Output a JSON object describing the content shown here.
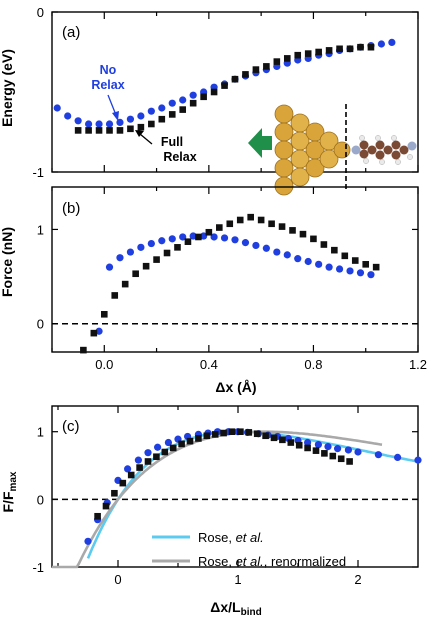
{
  "colors": {
    "blue": "#1f3fe0",
    "black": "#111111",
    "rose": "#5ccbf0",
    "renorm": "#a9a9a9",
    "gold": "#d9a53b",
    "arrow": "#1f8f4a"
  },
  "chart_data": [
    {
      "type": "scatter",
      "panel_label": "(a)",
      "ylabel": "Energy (eV)",
      "xlim": [
        -0.2,
        1.2
      ],
      "ylim": [
        -1,
        0
      ],
      "yticks": [
        "0",
        "-1"
      ],
      "annotations": {
        "no_relax": [
          "No",
          "Relax"
        ],
        "full_relax": [
          "Full",
          "Relax"
        ]
      },
      "inset_icon": "gold-tip-molecule-illustration",
      "series": [
        {
          "name": "No Relax",
          "color": "blue",
          "x": [
            -0.18,
            -0.14,
            -0.1,
            -0.06,
            -0.02,
            0.02,
            0.06,
            0.1,
            0.14,
            0.18,
            0.22,
            0.26,
            0.3,
            0.34,
            0.38,
            0.42,
            0.46,
            0.5,
            0.54,
            0.58,
            0.62,
            0.66,
            0.7,
            0.74,
            0.78,
            0.82,
            0.86,
            0.9,
            0.94,
            0.98,
            1.02,
            1.06,
            1.1
          ],
          "y": [
            -0.6,
            -0.65,
            -0.68,
            -0.7,
            -0.7,
            -0.7,
            -0.69,
            -0.67,
            -0.65,
            -0.62,
            -0.6,
            -0.57,
            -0.55,
            -0.52,
            -0.5,
            -0.47,
            -0.45,
            -0.42,
            -0.4,
            -0.38,
            -0.36,
            -0.34,
            -0.32,
            -0.3,
            -0.29,
            -0.27,
            -0.26,
            -0.24,
            -0.23,
            -0.22,
            -0.21,
            -0.2,
            -0.19
          ]
        },
        {
          "name": "Full Relax",
          "color": "black",
          "x": [
            -0.1,
            -0.06,
            -0.02,
            0.02,
            0.06,
            0.1,
            0.14,
            0.18,
            0.22,
            0.26,
            0.3,
            0.34,
            0.38,
            0.42,
            0.46,
            0.5,
            0.54,
            0.58,
            0.62,
            0.66,
            0.7,
            0.74,
            0.78,
            0.82,
            0.86,
            0.9,
            0.94,
            0.98,
            1.02
          ],
          "y": [
            -0.74,
            -0.74,
            -0.74,
            -0.74,
            -0.74,
            -0.73,
            -0.72,
            -0.7,
            -0.67,
            -0.64,
            -0.61,
            -0.57,
            -0.53,
            -0.5,
            -0.46,
            -0.42,
            -0.39,
            -0.36,
            -0.34,
            -0.31,
            -0.29,
            -0.27,
            -0.26,
            -0.25,
            -0.24,
            -0.23,
            -0.23,
            -0.22,
            -0.22
          ]
        }
      ]
    },
    {
      "type": "scatter",
      "panel_label": "(b)",
      "xlabel": "Δx (Å)",
      "ylabel": "Force (nN)",
      "xlim": [
        -0.2,
        1.2
      ],
      "ylim": [
        -0.3,
        1.45
      ],
      "xticks": [
        "0.0",
        "0.4",
        "0.8",
        "1.2"
      ],
      "yticks": [
        "0",
        "1"
      ],
      "dashed_zero_line": true,
      "series": [
        {
          "name": "No Relax",
          "color": "blue",
          "x": [
            -0.02,
            0.02,
            0.06,
            0.1,
            0.14,
            0.18,
            0.22,
            0.26,
            0.3,
            0.34,
            0.38,
            0.42,
            0.46,
            0.5,
            0.54,
            0.58,
            0.62,
            0.66,
            0.7,
            0.74,
            0.78,
            0.82,
            0.86,
            0.9,
            0.94,
            0.98,
            1.02
          ],
          "y": [
            -0.08,
            0.6,
            0.7,
            0.76,
            0.81,
            0.85,
            0.88,
            0.9,
            0.92,
            0.93,
            0.93,
            0.92,
            0.91,
            0.89,
            0.86,
            0.83,
            0.8,
            0.76,
            0.73,
            0.69,
            0.66,
            0.63,
            0.6,
            0.58,
            0.56,
            0.54,
            0.52
          ]
        },
        {
          "name": "Full Relax",
          "color": "black",
          "x": [
            -0.08,
            -0.04,
            0.0,
            0.04,
            0.08,
            0.12,
            0.16,
            0.2,
            0.24,
            0.28,
            0.32,
            0.36,
            0.4,
            0.44,
            0.48,
            0.52,
            0.56,
            0.6,
            0.64,
            0.68,
            0.72,
            0.76,
            0.8,
            0.84,
            0.88,
            0.92,
            0.96,
            1.0,
            1.04
          ],
          "y": [
            -0.28,
            -0.1,
            0.1,
            0.3,
            0.42,
            0.53,
            0.61,
            0.68,
            0.75,
            0.81,
            0.87,
            0.92,
            0.97,
            1.02,
            1.06,
            1.1,
            1.13,
            1.1,
            1.06,
            1.03,
            0.99,
            0.95,
            0.9,
            0.84,
            0.78,
            0.72,
            0.67,
            0.63,
            0.6
          ]
        }
      ]
    },
    {
      "type": "line",
      "panel_label": "(c)",
      "xlabel": "Δx/L",
      "xlabel_sub": "bind",
      "ylabel": "F/F",
      "ylabel_sub": "max",
      "xlim": [
        -0.55,
        2.5
      ],
      "ylim": [
        -1,
        1.38
      ],
      "xticks": [
        "0",
        "1",
        "2"
      ],
      "yticks": [
        "-1",
        "0",
        "1"
      ],
      "dashed_zero_line": true,
      "legend_position": "bottom-right",
      "legend": [
        {
          "text_plain": "Rose, ",
          "text_italic": "et al.",
          "text_after": "",
          "color": "rose"
        },
        {
          "text_plain": "Rose, ",
          "text_italic": "et al.",
          "text_after": ", renormalized",
          "color": "renorm"
        }
      ],
      "series": [
        {
          "name": "Rose, et al.",
          "color": "rose",
          "kind": "rose",
          "a": 1.0,
          "range": [
            -0.25,
            2.5
          ]
        },
        {
          "name": "Rose, et al., renormalized",
          "color": "renorm",
          "kind": "rose",
          "a": 1.22,
          "range": [
            -0.55,
            2.2
          ]
        },
        {
          "name": "No Relax",
          "color": "blue",
          "kind": "points",
          "x": [
            -0.25,
            -0.17,
            -0.09,
            0.0,
            0.08,
            0.17,
            0.25,
            0.33,
            0.42,
            0.5,
            0.58,
            0.67,
            0.75,
            0.83,
            0.92,
            1.0,
            1.08,
            1.17,
            1.25,
            1.33,
            1.42,
            1.5,
            1.58,
            1.67,
            1.75,
            1.83,
            1.92,
            2.0,
            2.17,
            2.33,
            2.5
          ],
          "y": [
            -0.62,
            -0.3,
            -0.05,
            0.28,
            0.45,
            0.58,
            0.69,
            0.77,
            0.84,
            0.89,
            0.93,
            0.96,
            0.98,
            1.0,
            1.0,
            1.0,
            0.99,
            0.97,
            0.95,
            0.93,
            0.9,
            0.87,
            0.84,
            0.81,
            0.78,
            0.75,
            0.73,
            0.7,
            0.66,
            0.62,
            0.58
          ]
        },
        {
          "name": "Full Relax",
          "color": "black",
          "kind": "points",
          "x": [
            -0.17,
            -0.1,
            -0.03,
            0.04,
            0.11,
            0.18,
            0.25,
            0.32,
            0.39,
            0.46,
            0.53,
            0.6,
            0.67,
            0.74,
            0.81,
            0.88,
            0.95,
            1.02,
            1.09,
            1.16,
            1.23,
            1.3,
            1.37,
            1.44,
            1.51,
            1.58,
            1.65,
            1.72,
            1.79,
            1.86,
            1.93
          ],
          "y": [
            -0.25,
            -0.1,
            0.09,
            0.24,
            0.36,
            0.47,
            0.56,
            0.63,
            0.7,
            0.76,
            0.82,
            0.86,
            0.9,
            0.94,
            0.96,
            0.98,
            1.0,
            1.0,
            0.99,
            0.97,
            0.94,
            0.91,
            0.88,
            0.84,
            0.8,
            0.76,
            0.72,
            0.68,
            0.64,
            0.6,
            0.56
          ]
        }
      ]
    }
  ]
}
